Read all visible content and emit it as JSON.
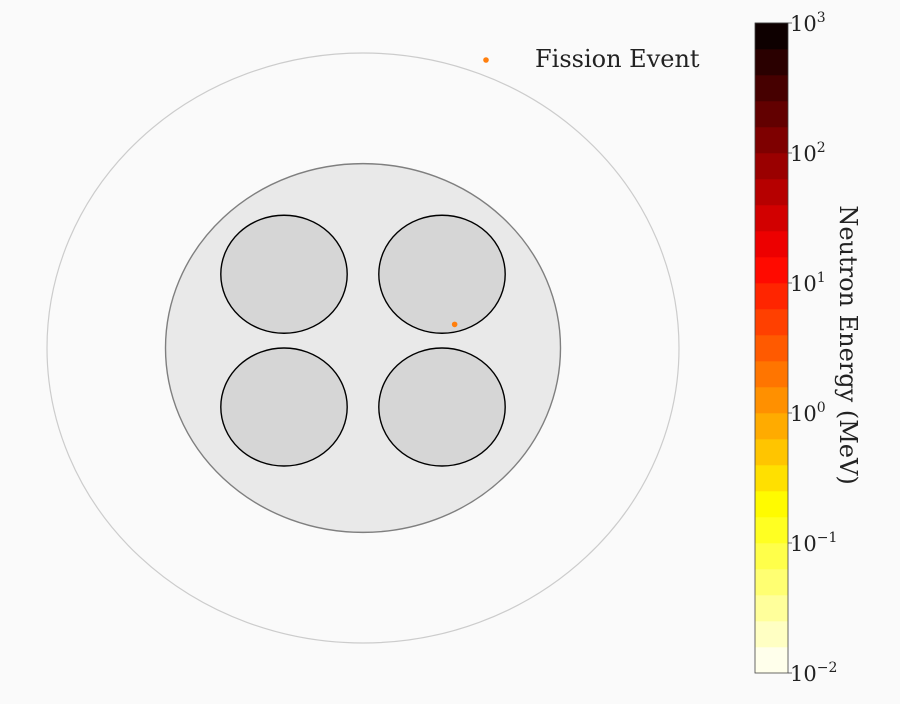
{
  "chart_data": {
    "type": "scatter",
    "title": "",
    "xlabel": "",
    "ylabel": "",
    "axes_visible": false,
    "grid": false,
    "legend": {
      "placement": "top-right",
      "entries": [
        "Fission Event"
      ]
    },
    "geometry_regions": [
      {
        "name": "outer-boundary",
        "shape": "circle",
        "center": [
          0,
          0
        ],
        "radius": 1.0
      },
      {
        "name": "assembly",
        "shape": "circle",
        "center": [
          0,
          0
        ],
        "radius": 0.625
      },
      {
        "name": "fuel-pin-top-left",
        "shape": "circle",
        "center": [
          -0.25,
          0.25
        ],
        "radius": 0.2
      },
      {
        "name": "fuel-pin-top-right",
        "shape": "circle",
        "center": [
          0.25,
          0.25
        ],
        "radius": 0.2
      },
      {
        "name": "fuel-pin-bottom-left",
        "shape": "circle",
        "center": [
          -0.25,
          -0.2
        ],
        "radius": 0.2
      },
      {
        "name": "fuel-pin-bottom-right",
        "shape": "circle",
        "center": [
          0.25,
          -0.2
        ],
        "radius": 0.2
      }
    ],
    "series": [
      {
        "name": "Fission Event",
        "color": "#ff7f0e",
        "points": [
          {
            "x": 0.29,
            "y": 0.08
          }
        ]
      }
    ],
    "colorbar": {
      "label": "Neutron Energy (MeV)",
      "scale": "log",
      "range": [
        0.01,
        1000
      ],
      "colormap": "hot_r",
      "levels": 25,
      "ticks": [
        {
          "value": 0.01,
          "base": "10",
          "exp": "−2"
        },
        {
          "value": 0.1,
          "base": "10",
          "exp": "−1"
        },
        {
          "value": 1,
          "base": "10",
          "exp": "0"
        },
        {
          "value": 10,
          "base": "10",
          "exp": "1"
        },
        {
          "value": 100,
          "base": "10",
          "exp": "2"
        },
        {
          "value": 1000,
          "base": "10",
          "exp": "3"
        }
      ]
    },
    "colors": {
      "background": "#fafafa",
      "outer_fill": "#fafafa",
      "outer_stroke": "#cccccc",
      "assembly_fill": "#e9e9e9",
      "assembly_stroke": "#7f7f7f",
      "pin_fill": "#d6d6d6",
      "pin_stroke": "#000000"
    }
  }
}
